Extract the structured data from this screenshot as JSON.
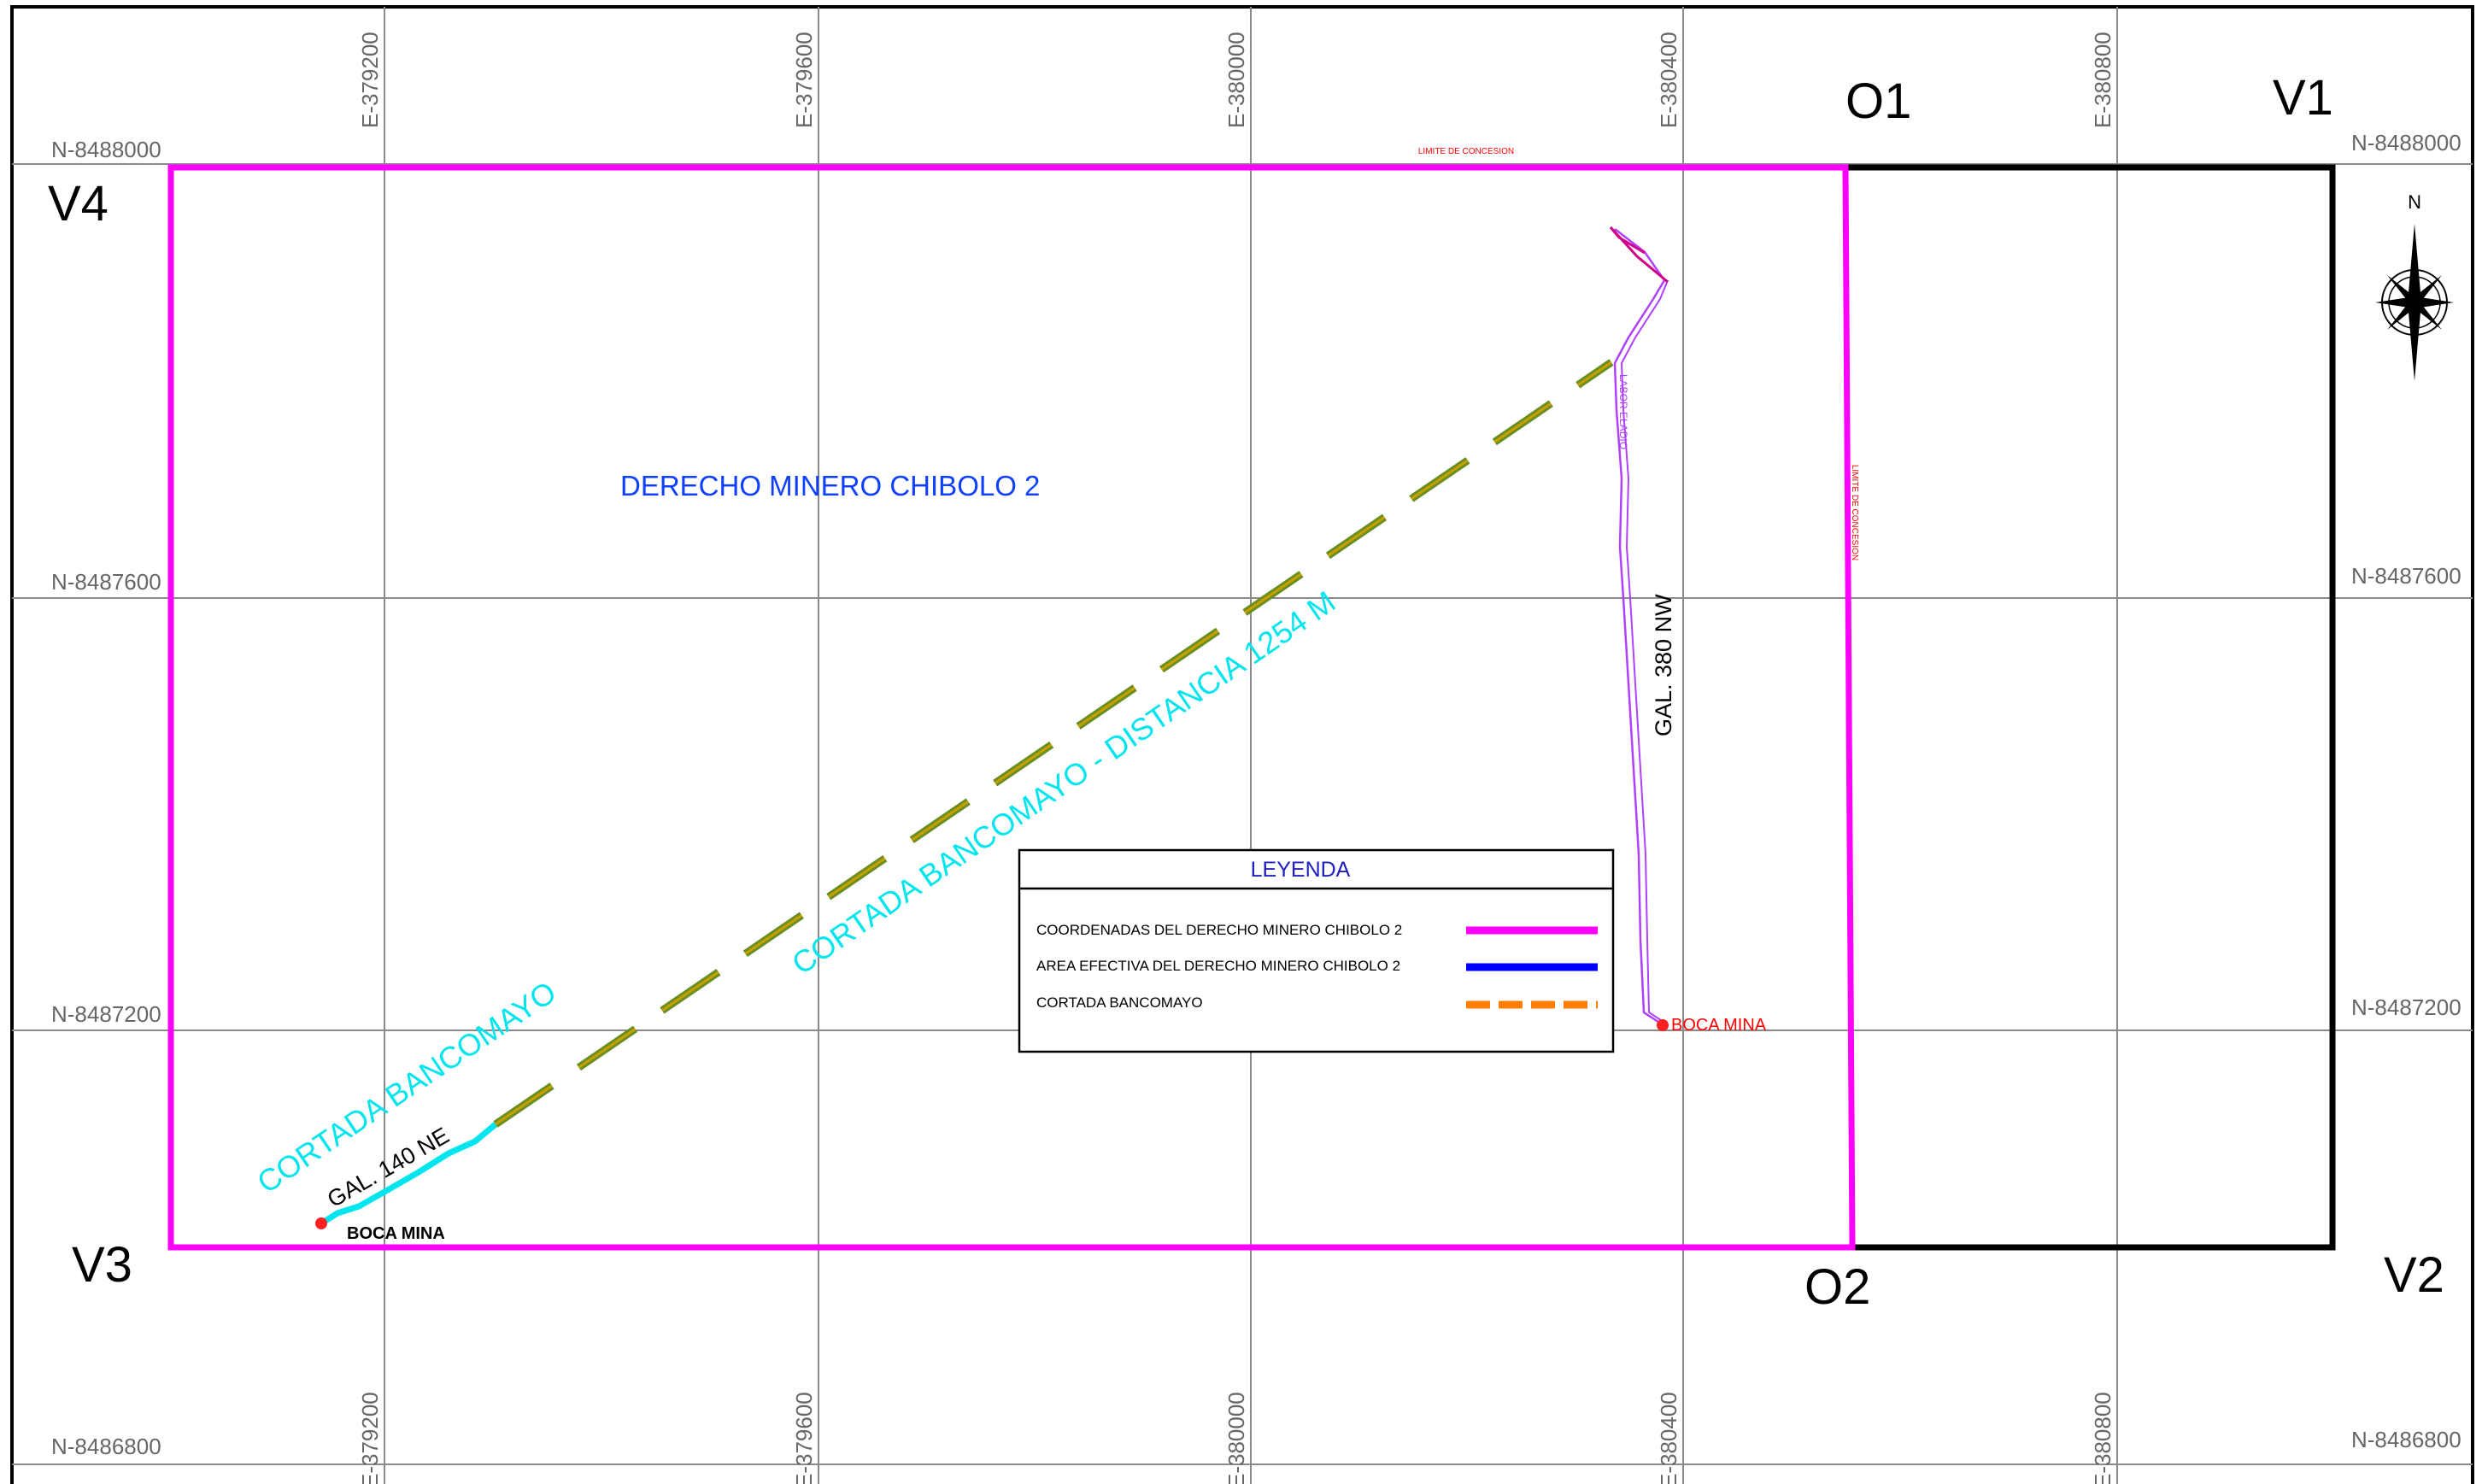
{
  "grid": {
    "easting_labels": [
      "E-379200",
      "E-379600",
      "E-380000",
      "E-380400",
      "E-380800"
    ],
    "northing_left": [
      "N-8488000",
      "N-8487600",
      "N-8487200",
      "N-8486800"
    ],
    "northing_right": [
      "N-8488000",
      "N-8487600",
      "N-8487200",
      "N-8486800"
    ]
  },
  "vertices": {
    "v1": "V1",
    "v2": "V2",
    "v3": "V3",
    "v4": "V4",
    "o1": "O1",
    "o2": "O2"
  },
  "labels": {
    "concession_name": "DERECHO MINERO CHIBOLO 2",
    "limit_top": "LIMITE DE CONCESION",
    "limit_side": "LIMITE DE CONCESION",
    "cortada_distance": "CORTADA BANCOMAYO - DISTANCIA 1254 M",
    "cortada": "CORTADA BANCOMAYO",
    "gal_140": "GAL. 140 NE",
    "gal_380": "GAL. 380 NW",
    "labor": "LABOR ELADIO",
    "boca_mina_sw": "BOCA MINA",
    "boca_mina_e": "BOCA MINA"
  },
  "compass": {
    "north": "N"
  },
  "legend": {
    "title": "LEYENDA",
    "items": [
      {
        "label": "COORDENADAS DEL DERECHO MINERO CHIBOLO 2",
        "color": "#ff00ff",
        "style": "solid"
      },
      {
        "label": "AREA EFECTIVA DEL DERECHO MINERO CHIBOLO 2",
        "color": "#0000ff",
        "style": "solid"
      },
      {
        "label": "CORTADA BANCOMAYO",
        "color": "#ff8000",
        "style": "dashed"
      }
    ]
  },
  "colors": {
    "concession": "#ff00ff",
    "cortada_text": "#00e5ee",
    "cortada_line": "#6b8e23",
    "cortada_dash": "#c8a000",
    "boca": "#ff0000",
    "title_text": "#1040ff",
    "limit_text": "#ff0000"
  }
}
